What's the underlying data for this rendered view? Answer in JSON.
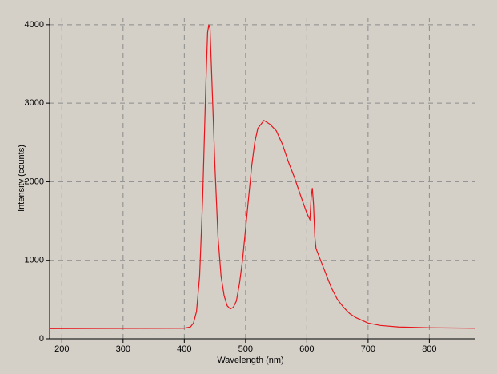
{
  "chart_data": {
    "type": "line",
    "x_label": "Wavelength (nm)",
    "y_label": "Intensity (counts)",
    "x": [
      180,
      400,
      410,
      415,
      420,
      425,
      430,
      435,
      438,
      440,
      442,
      445,
      450,
      455,
      460,
      465,
      470,
      475,
      480,
      485,
      490,
      495,
      500,
      505,
      510,
      515,
      520,
      530,
      540,
      550,
      560,
      570,
      580,
      590,
      600,
      605,
      607,
      609,
      611,
      613,
      615,
      620,
      630,
      640,
      650,
      660,
      670,
      680,
      700,
      720,
      750,
      800,
      874
    ],
    "series": [
      {
        "name": "Intensity",
        "color": "#e8141a",
        "values": [
          130,
          135,
          150,
          200,
          350,
          800,
          1800,
          3200,
          3900,
          4000,
          3950,
          3300,
          2200,
          1300,
          800,
          550,
          420,
          380,
          400,
          480,
          700,
          1000,
          1400,
          1800,
          2200,
          2500,
          2680,
          2780,
          2730,
          2650,
          2480,
          2250,
          2050,
          1820,
          1600,
          1520,
          1800,
          1920,
          1700,
          1300,
          1150,
          1050,
          850,
          650,
          500,
          400,
          320,
          270,
          200,
          170,
          150,
          140,
          135
        ]
      }
    ],
    "xlim": [
      180,
      874
    ],
    "xticks": [
      200,
      300,
      400,
      500,
      600,
      700,
      800
    ],
    "ylim": [
      0,
      4090
    ],
    "yticks": [
      0,
      1000,
      2000,
      3000,
      4000
    ],
    "grid": true
  }
}
